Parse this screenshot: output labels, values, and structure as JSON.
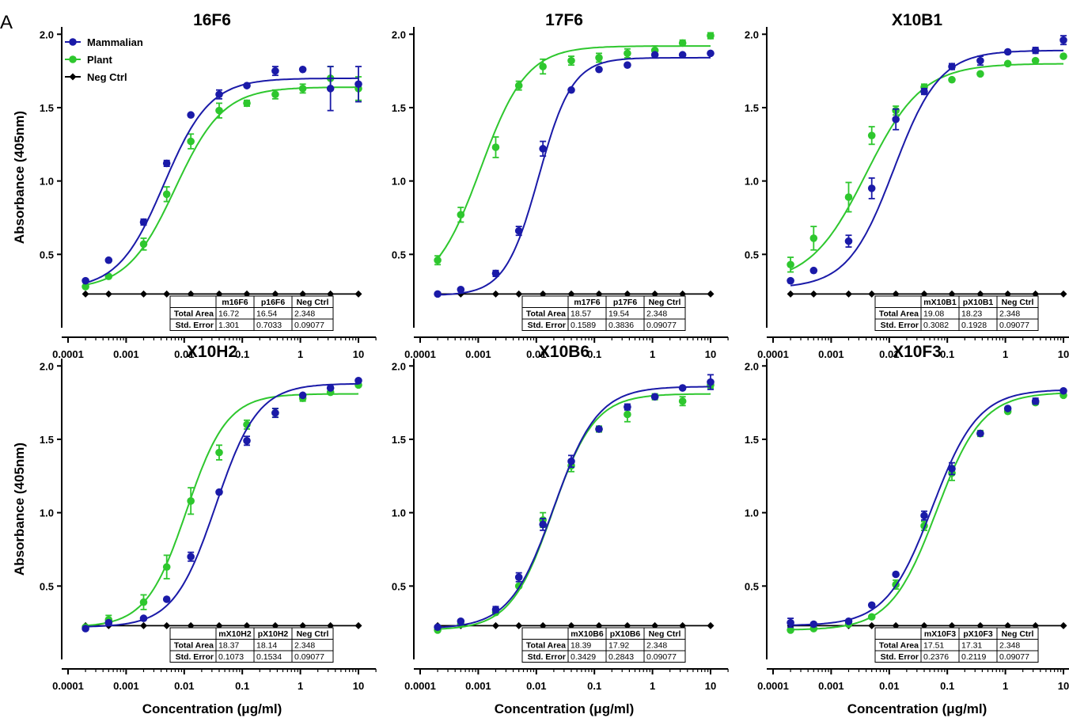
{
  "panel_label": "A",
  "shared": {
    "ylabel": "Absorbance (405nm)",
    "xlabel": "Concentration (μg/ml)",
    "xscale": "log",
    "xlim": [
      0.0001,
      20
    ],
    "ylim": [
      0.0,
      2.05
    ],
    "yticks": [
      "2.0",
      "1.5",
      "1.0",
      "0.5"
    ],
    "xticks": [
      "0.0001",
      "0.001",
      "0.01",
      "0.1",
      "1",
      "10"
    ],
    "concentrations": [
      0.0002,
      0.0005,
      0.002,
      0.005,
      0.013,
      0.04,
      0.12,
      0.37,
      1.1,
      3.3,
      10
    ],
    "colors": {
      "Mammalian": "#1a1aa8",
      "Plant": "#2ec72e",
      "Neg Ctrl": "#000000"
    },
    "legend": [
      "Mammalian",
      "Plant",
      "Neg Ctrl"
    ],
    "legend_location": "top-left of first panel",
    "table_col_label_last": "Neg Ctrl",
    "table_row_labels": [
      "Total Area",
      "Std. Error"
    ],
    "negctrl_value": 0.23
  },
  "chart_data": [
    {
      "type": "scatter",
      "title": "16F6",
      "series": [
        {
          "name": "Mammalian",
          "y": [
            0.32,
            0.46,
            0.72,
            1.12,
            1.45,
            1.59,
            1.65,
            1.75,
            1.76,
            1.63,
            1.66
          ],
          "err": [
            0.01,
            0.01,
            0.02,
            0.02,
            0.01,
            0.03,
            0.01,
            0.03,
            0.01,
            0.15,
            0.12
          ],
          "fit": {
            "bottom": 0.26,
            "top": 1.7,
            "ec50": 0.0045,
            "hill": 1.1
          }
        },
        {
          "name": "Plant",
          "y": [
            0.28,
            0.35,
            0.57,
            0.91,
            1.27,
            1.48,
            1.53,
            1.59,
            1.63,
            1.7,
            1.63
          ],
          "err": [
            0.01,
            0.01,
            0.04,
            0.05,
            0.05,
            0.05,
            0.02,
            0.03,
            0.03,
            0.08,
            0.08
          ],
          "fit": {
            "bottom": 0.26,
            "top": 1.64,
            "ec50": 0.007,
            "hill": 1.05
          }
        },
        {
          "name": "Neg Ctrl"
        }
      ],
      "table": {
        "cols": [
          "m16F6",
          "p16F6",
          "Neg Ctrl"
        ],
        "total_area": [
          "16.72",
          "16.54",
          "2.348"
        ],
        "std_error": [
          "1.301",
          "0.7033",
          "0.09077"
        ]
      }
    },
    {
      "type": "scatter",
      "title": "17F6",
      "series": [
        {
          "name": "Mammalian",
          "y": [
            0.23,
            0.26,
            0.37,
            0.66,
            1.22,
            1.62,
            1.76,
            1.79,
            1.86,
            1.86,
            1.87
          ],
          "err": [
            0.01,
            0.01,
            0.02,
            0.03,
            0.05,
            0.01,
            0.01,
            0.01,
            0.01,
            0.01,
            0.01
          ],
          "fit": {
            "bottom": 0.22,
            "top": 1.84,
            "ec50": 0.011,
            "hill": 1.5
          }
        },
        {
          "name": "Plant",
          "y": [
            0.46,
            0.77,
            1.23,
            1.65,
            1.78,
            1.82,
            1.84,
            1.87,
            1.89,
            1.94,
            1.99
          ],
          "err": [
            0.03,
            0.05,
            0.07,
            0.03,
            0.05,
            0.03,
            0.03,
            0.03,
            0.03,
            0.02,
            0.02
          ],
          "fit": {
            "bottom": 0.25,
            "top": 1.92,
            "ec50": 0.0011,
            "hill": 1.1
          }
        },
        {
          "name": "Neg Ctrl"
        }
      ],
      "table": {
        "cols": [
          "m17F6",
          "p17F6",
          "Neg Ctrl"
        ],
        "total_area": [
          "18.57",
          "19.54",
          "2.348"
        ],
        "std_error": [
          "0.1589",
          "0.3836",
          "0.09077"
        ]
      }
    },
    {
      "type": "scatter",
      "title": "X10B1",
      "series": [
        {
          "name": "Mammalian",
          "y": [
            0.32,
            0.39,
            0.59,
            0.95,
            1.42,
            1.61,
            1.78,
            1.82,
            1.88,
            1.89,
            1.96
          ],
          "err": [
            0.01,
            0.01,
            0.04,
            0.07,
            0.07,
            0.02,
            0.02,
            0.03,
            0.01,
            0.02,
            0.03
          ],
          "fit": {
            "bottom": 0.27,
            "top": 1.89,
            "ec50": 0.012,
            "hill": 1.1
          }
        },
        {
          "name": "Plant",
          "y": [
            0.43,
            0.61,
            0.89,
            1.31,
            1.48,
            1.64,
            1.69,
            1.73,
            1.8,
            1.82,
            1.85
          ],
          "err": [
            0.05,
            0.08,
            0.1,
            0.06,
            0.03,
            0.02,
            0.01,
            0.01,
            0.01,
            0.01,
            0.01
          ],
          "fit": {
            "bottom": 0.3,
            "top": 1.8,
            "ec50": 0.004,
            "hill": 0.9
          }
        },
        {
          "name": "Neg Ctrl"
        }
      ],
      "table": {
        "cols": [
          "mX10B1",
          "pX10B1",
          "Neg Ctrl"
        ],
        "total_area": [
          "19.08",
          "18.23",
          "2.348"
        ],
        "std_error": [
          "0.3082",
          "0.1928",
          "0.09077"
        ]
      }
    },
    {
      "type": "scatter",
      "title": "X10H2",
      "series": [
        {
          "name": "Mammalian",
          "y": [
            0.21,
            0.25,
            0.28,
            0.41,
            0.7,
            1.14,
            1.49,
            1.68,
            1.8,
            1.85,
            1.9
          ],
          "err": [
            0.01,
            0.01,
            0.01,
            0.01,
            0.03,
            0.01,
            0.03,
            0.03,
            0.01,
            0.01,
            0.01
          ],
          "fit": {
            "bottom": 0.22,
            "top": 1.88,
            "ec50": 0.035,
            "hill": 1.2
          }
        },
        {
          "name": "Plant",
          "y": [
            0.22,
            0.27,
            0.39,
            0.63,
            1.08,
            1.41,
            1.6,
            1.68,
            1.78,
            1.82,
            1.87
          ],
          "err": [
            0.01,
            0.03,
            0.05,
            0.08,
            0.09,
            0.05,
            0.03,
            0.03,
            0.02,
            0.01,
            0.01
          ],
          "fit": {
            "bottom": 0.22,
            "top": 1.81,
            "ec50": 0.011,
            "hill": 1.25
          }
        },
        {
          "name": "Neg Ctrl"
        }
      ],
      "table": {
        "cols": [
          "mX10H2",
          "pX10H2",
          "Neg Ctrl"
        ],
        "total_area": [
          "18.37",
          "18.14",
          "2.348"
        ],
        "std_error": [
          "0.1073",
          "0.1534",
          "0.09077"
        ]
      }
    },
    {
      "type": "scatter",
      "title": "X10B6",
      "series": [
        {
          "name": "Mammalian",
          "y": [
            0.22,
            0.26,
            0.34,
            0.56,
            0.92,
            1.35,
            1.57,
            1.72,
            1.79,
            1.85,
            1.89
          ],
          "err": [
            0.01,
            0.01,
            0.02,
            0.03,
            0.04,
            0.04,
            0.01,
            0.02,
            0.01,
            0.01,
            0.05
          ],
          "fit": {
            "bottom": 0.21,
            "top": 1.86,
            "ec50": 0.02,
            "hill": 1.15
          }
        },
        {
          "name": "Plant",
          "y": [
            0.2,
            0.24,
            0.32,
            0.5,
            0.95,
            1.32,
            1.57,
            1.67,
            1.79,
            1.76,
            1.87
          ],
          "err": [
            0.01,
            0.01,
            0.01,
            0.01,
            0.05,
            0.04,
            0.02,
            0.05,
            0.02,
            0.03,
            0.02
          ],
          "fit": {
            "bottom": 0.2,
            "top": 1.81,
            "ec50": 0.019,
            "hill": 1.2
          }
        },
        {
          "name": "Neg Ctrl"
        }
      ],
      "table": {
        "cols": [
          "mX10B6",
          "pX10B6",
          "Neg Ctrl"
        ],
        "total_area": [
          "18.39",
          "17.92",
          "2.348"
        ],
        "std_error": [
          "0.3429",
          "0.2843",
          "0.09077"
        ]
      }
    },
    {
      "type": "scatter",
      "title": "X10F3",
      "series": [
        {
          "name": "Mammalian",
          "y": [
            0.25,
            0.24,
            0.26,
            0.37,
            0.58,
            0.98,
            1.3,
            1.54,
            1.71,
            1.76,
            1.83
          ],
          "err": [
            0.03,
            0.01,
            0.01,
            0.01,
            0.01,
            0.03,
            0.04,
            0.01,
            0.01,
            0.02,
            0.01
          ],
          "fit": {
            "bottom": 0.23,
            "top": 1.84,
            "ec50": 0.055,
            "hill": 1.1
          }
        },
        {
          "name": "Plant",
          "y": [
            0.2,
            0.21,
            0.24,
            0.29,
            0.51,
            0.91,
            1.27,
            1.54,
            1.69,
            1.75,
            1.8
          ],
          "err": [
            0.01,
            0.01,
            0.01,
            0.01,
            0.03,
            0.03,
            0.05,
            0.02,
            0.01,
            0.01,
            0.01
          ],
          "fit": {
            "bottom": 0.2,
            "top": 1.82,
            "ec50": 0.065,
            "hill": 1.1
          }
        },
        {
          "name": "Neg Ctrl"
        }
      ],
      "table": {
        "cols": [
          "mX10F3",
          "pX10F3",
          "Neg Ctrl"
        ],
        "total_area": [
          "17.51",
          "17.31",
          "2.348"
        ],
        "std_error": [
          "0.2376",
          "0.2119",
          "0.09077"
        ]
      }
    }
  ]
}
